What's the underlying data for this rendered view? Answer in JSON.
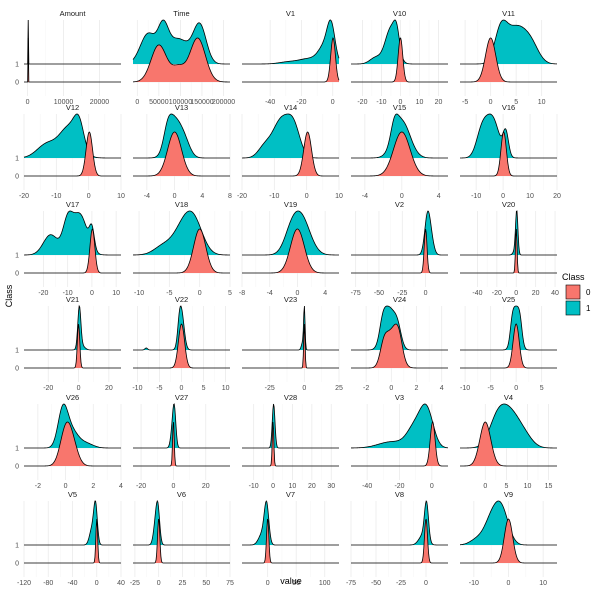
{
  "chart_data": {
    "type": "area",
    "chart_kind": "faceted ridgeline density plot",
    "xlabel": "value",
    "ylabel": "Class",
    "legend": {
      "title": "Class",
      "position": "right",
      "entries": [
        {
          "label": "0",
          "color": "#F8766D"
        },
        {
          "label": "1",
          "color": "#00BFC4"
        }
      ]
    },
    "y_categories": [
      "0",
      "1"
    ],
    "grid": true,
    "layout": {
      "rows": 6,
      "cols": 5,
      "x_scales": "free"
    },
    "panels": [
      {
        "name": "Amount",
        "xlim": [
          -1000,
          26000
        ],
        "ticks": [
          0,
          10000,
          20000
        ],
        "dist0": [
          [
            0,
            0.15,
            1.5
          ],
          [
            120,
            2,
            0.15
          ]
        ],
        "dist1": [
          [
            0,
            0.15,
            1.5
          ],
          [
            120,
            2,
            0.1
          ]
        ]
      },
      {
        "name": "Time",
        "xlim": [
          -10000,
          215000
        ],
        "ticks": [
          0,
          50000,
          100000,
          150000,
          200000
        ],
        "tick_labels": [
          "0",
          "50000",
          "100000",
          "150000",
          "200000"
        ],
        "dist0": [
          [
            50000,
            18000,
            0.8
          ],
          [
            140000,
            18000,
            0.95
          ],
          [
            95000,
            15000,
            0.3
          ]
        ],
        "dist1": [
          [
            25000,
            18000,
            0.6
          ],
          [
            60000,
            12000,
            0.6
          ],
          [
            95000,
            25000,
            0.5
          ],
          [
            145000,
            15000,
            0.75
          ]
        ]
      },
      {
        "name": "V1",
        "xlim": [
          -58,
          4
        ],
        "ticks": [
          -40,
          -20,
          0
        ],
        "dist0": [
          [
            0.2,
            1.5,
            1
          ]
        ],
        "dist1": [
          [
            -1,
            2.5,
            0.75
          ],
          [
            -5,
            4,
            0.4
          ],
          [
            -15,
            6,
            0.12
          ],
          [
            -28,
            6,
            0.05
          ]
        ]
      },
      {
        "name": "V10",
        "xlim": [
          -26,
          25
        ],
        "ticks": [
          -20,
          -10,
          0,
          10,
          20
        ],
        "dist0": [
          [
            0,
            1.2,
            1
          ]
        ],
        "dist1": [
          [
            -5,
            3,
            0.55
          ],
          [
            -2,
            1.5,
            0.3
          ],
          [
            -13,
            3,
            0.1
          ]
        ]
      },
      {
        "name": "V11",
        "xlim": [
          -6,
          13
        ],
        "ticks": [
          -5,
          0,
          5,
          10
        ],
        "dist0": [
          [
            0,
            1,
            1
          ]
        ],
        "dist1": [
          [
            2,
            1.2,
            0.6
          ],
          [
            5,
            2,
            0.7
          ],
          [
            8,
            1.5,
            0.3
          ]
        ]
      },
      {
        "name": "V12",
        "xlim": [
          -20,
          10
        ],
        "ticks": [
          -20,
          -10,
          0,
          10
        ],
        "dist0": [
          [
            0.2,
            1,
            1
          ]
        ],
        "dist1": [
          [
            -6,
            3,
            0.45
          ],
          [
            -3,
            1.5,
            0.35
          ],
          [
            -13,
            3,
            0.2
          ]
        ]
      },
      {
        "name": "V13",
        "xlim": [
          -6,
          8
        ],
        "ticks": [
          -4,
          0,
          4,
          8
        ],
        "dist0": [
          [
            0,
            1,
            1
          ]
        ],
        "dist1": [
          [
            0,
            1,
            0.85
          ],
          [
            -1,
            0.6,
            0.4
          ],
          [
            1.5,
            0.8,
            0.3
          ]
        ]
      },
      {
        "name": "V14",
        "xlim": [
          -20,
          10
        ],
        "ticks": [
          -20,
          -10,
          0,
          10
        ],
        "dist0": [
          [
            0.3,
            1.2,
            1
          ]
        ],
        "dist1": [
          [
            -8,
            2.5,
            0.5
          ],
          [
            -4,
            2,
            0.4
          ],
          [
            -13,
            2,
            0.15
          ]
        ]
      },
      {
        "name": "V15",
        "xlim": [
          -5.5,
          5
        ],
        "ticks": [
          -4,
          0,
          4
        ],
        "dist0": [
          [
            0,
            0.9,
            1
          ]
        ],
        "dist1": [
          [
            0,
            0.9,
            0.9
          ],
          [
            -0.8,
            0.4,
            0.4
          ]
        ]
      },
      {
        "name": "V16",
        "xlim": [
          -16,
          20
        ],
        "ticks": [
          -10,
          0,
          10,
          20
        ],
        "dist0": [
          [
            0.2,
            1,
            1
          ]
        ],
        "dist1": [
          [
            -4,
            2.5,
            0.5
          ],
          [
            -8,
            2,
            0.3
          ],
          [
            1,
            1,
            0.3
          ]
        ]
      },
      {
        "name": "V17",
        "xlim": [
          -28,
          12
        ],
        "ticks": [
          -20,
          -10,
          0,
          10
        ],
        "dist0": [
          [
            0.2,
            1,
            1
          ]
        ],
        "dist1": [
          [
            -5,
            3,
            0.4
          ],
          [
            -10,
            2,
            0.3
          ],
          [
            -17,
            3,
            0.2
          ],
          [
            0,
            1,
            0.2
          ]
        ]
      },
      {
        "name": "V18",
        "xlim": [
          -11,
          5
        ],
        "ticks": [
          -10,
          -5,
          0,
          5
        ],
        "dist0": [
          [
            0,
            1,
            1
          ]
        ],
        "dist1": [
          [
            -1,
            1.5,
            0.55
          ],
          [
            -3,
            1.5,
            0.35
          ],
          [
            -6,
            1.5,
            0.15
          ]
        ]
      },
      {
        "name": "V19",
        "xlim": [
          -8,
          6
        ],
        "ticks": [
          -8,
          -4,
          0,
          4
        ],
        "dist0": [
          [
            0,
            1,
            1
          ]
        ],
        "dist1": [
          [
            0.5,
            1.3,
            0.8
          ],
          [
            -1,
            1,
            0.3
          ]
        ]
      },
      {
        "name": "V2",
        "xlim": [
          -80,
          24
        ],
        "ticks": [
          -75,
          -50,
          -25,
          0
        ],
        "dist0": [
          [
            0,
            1.5,
            1
          ]
        ],
        "dist1": [
          [
            2,
            3,
            0.9
          ],
          [
            6,
            3,
            0.3
          ]
        ]
      },
      {
        "name": "V20",
        "xlim": [
          -58,
          42
        ],
        "ticks": [
          -40,
          -20,
          0,
          20,
          40
        ],
        "dist0": [
          [
            0,
            0.8,
            1
          ]
        ],
        "dist1": [
          [
            0.5,
            1.2,
            0.85
          ],
          [
            -1,
            2,
            0.1
          ]
        ]
      },
      {
        "name": "V21",
        "xlim": [
          -36,
          28
        ],
        "ticks": [
          -20,
          0,
          20
        ],
        "dist0": [
          [
            0,
            0.8,
            1
          ]
        ],
        "dist1": [
          [
            0.5,
            1,
            0.9
          ],
          [
            2,
            2,
            0.1
          ]
        ]
      },
      {
        "name": "V22",
        "xlim": [
          -11,
          11
        ],
        "ticks": [
          -10,
          -5,
          0,
          5,
          10
        ],
        "dist0": [
          [
            0,
            0.7,
            1
          ]
        ],
        "dist1": [
          [
            0,
            0.6,
            0.9
          ],
          [
            -0.5,
            0.4,
            0.3
          ],
          [
            -8,
            0.3,
            0.05
          ]
        ]
      },
      {
        "name": "V23",
        "xlim": [
          -45,
          25
        ],
        "ticks": [
          -25,
          0,
          25
        ],
        "dist0": [
          [
            0,
            0.5,
            1
          ]
        ],
        "dist1": [
          [
            0,
            0.5,
            0.9
          ],
          [
            -1,
            1,
            0.2
          ]
        ]
      },
      {
        "name": "V24",
        "xlim": [
          -3.2,
          4.5
        ],
        "ticks": [
          -2,
          0,
          2,
          4
        ],
        "dist0": [
          [
            0.1,
            0.5,
            0.7
          ],
          [
            -0.6,
            0.3,
            0.35
          ],
          [
            0.6,
            0.3,
            0.35
          ]
        ],
        "dist1": [
          [
            -0.2,
            0.45,
            0.85
          ],
          [
            0.5,
            0.3,
            0.4
          ],
          [
            -0.7,
            0.25,
            0.3
          ]
        ]
      },
      {
        "name": "V25",
        "xlim": [
          -11,
          8
        ],
        "ticks": [
          -10,
          -5,
          0,
          5
        ],
        "dist0": [
          [
            0,
            0.6,
            1
          ]
        ],
        "dist1": [
          [
            0,
            0.7,
            0.85
          ],
          [
            -0.8,
            0.4,
            0.3
          ],
          [
            0.8,
            0.4,
            0.3
          ]
        ]
      },
      {
        "name": "V26",
        "xlim": [
          -3,
          4
        ],
        "ticks": [
          -2,
          0,
          2,
          4
        ],
        "dist0": [
          [
            0,
            0.4,
            0.9
          ],
          [
            0.5,
            0.4,
            0.5
          ]
        ],
        "dist1": [
          [
            -0.2,
            0.35,
            0.8
          ],
          [
            0.4,
            0.5,
            0.4
          ],
          [
            1.5,
            0.5,
            0.1
          ]
        ]
      },
      {
        "name": "V27",
        "xlim": [
          -25,
          35
        ],
        "ticks": [
          -20,
          0,
          20
        ],
        "dist0": [
          [
            0,
            0.5,
            1
          ]
        ],
        "dist1": [
          [
            0.5,
            1,
            0.55
          ],
          [
            -1,
            1,
            0.15
          ]
        ]
      },
      {
        "name": "V28",
        "xlim": [
          -16,
          34
        ],
        "ticks": [
          -10,
          0,
          10,
          20,
          30
        ],
        "dist0": [
          [
            0,
            0.4,
            1
          ]
        ],
        "dist1": [
          [
            0.3,
            0.7,
            0.6
          ]
        ]
      },
      {
        "name": "V3",
        "xlim": [
          -50,
          10
        ],
        "ticks": [
          -40,
          -20,
          0
        ],
        "dist0": [
          [
            0.5,
            1.5,
            1
          ]
        ],
        "dist1": [
          [
            -3,
            4,
            0.55
          ],
          [
            -10,
            5,
            0.35
          ],
          [
            -25,
            8,
            0.1
          ]
        ]
      },
      {
        "name": "V4",
        "xlim": [
          -6,
          17
        ],
        "ticks": [
          0,
          5,
          10,
          15
        ],
        "dist0": [
          [
            0,
            1.3,
            1
          ]
        ],
        "dist1": [
          [
            3,
            2,
            0.7
          ],
          [
            6,
            2,
            0.6
          ],
          [
            9,
            2,
            0.3
          ]
        ]
      },
      {
        "name": "V5",
        "xlim": [
          -120,
          40
        ],
        "ticks": [
          -120,
          -80,
          -40,
          0,
          40
        ],
        "dist0": [
          [
            0,
            1.5,
            1
          ]
        ],
        "dist1": [
          [
            -2,
            3,
            0.5
          ],
          [
            -8,
            4,
            0.2
          ]
        ]
      },
      {
        "name": "V6",
        "xlim": [
          -27,
          75
        ],
        "ticks": [
          -25,
          0,
          25,
          50,
          75
        ],
        "dist0": [
          [
            0,
            1.2,
            1
          ]
        ],
        "dist1": [
          [
            -1,
            2,
            0.55
          ],
          [
            -4,
            2,
            0.2
          ]
        ]
      },
      {
        "name": "V7",
        "xlim": [
          -45,
          125
        ],
        "ticks": [
          0,
          50,
          100
        ],
        "dist0": [
          [
            0,
            2,
            1
          ]
        ],
        "dist1": [
          [
            -2,
            4,
            0.55
          ],
          [
            -10,
            6,
            0.15
          ]
        ]
      },
      {
        "name": "V8",
        "xlim": [
          -75,
          22
        ],
        "ticks": [
          -75,
          -50,
          -25,
          0
        ],
        "dist0": [
          [
            0,
            1.5,
            1
          ]
        ],
        "dist1": [
          [
            0.5,
            2,
            0.75
          ],
          [
            -3,
            4,
            0.2
          ]
        ]
      },
      {
        "name": "V9",
        "xlim": [
          -14,
          14
        ],
        "ticks": [
          -10,
          0,
          10
        ],
        "dist0": [
          [
            0,
            1.2,
            1
          ]
        ],
        "dist1": [
          [
            -2,
            2,
            0.6
          ],
          [
            -5,
            2,
            0.4
          ],
          [
            -9,
            2,
            0.1
          ]
        ]
      }
    ]
  },
  "colors": {
    "class0": "#F8766D",
    "class1": "#00BFC4"
  }
}
